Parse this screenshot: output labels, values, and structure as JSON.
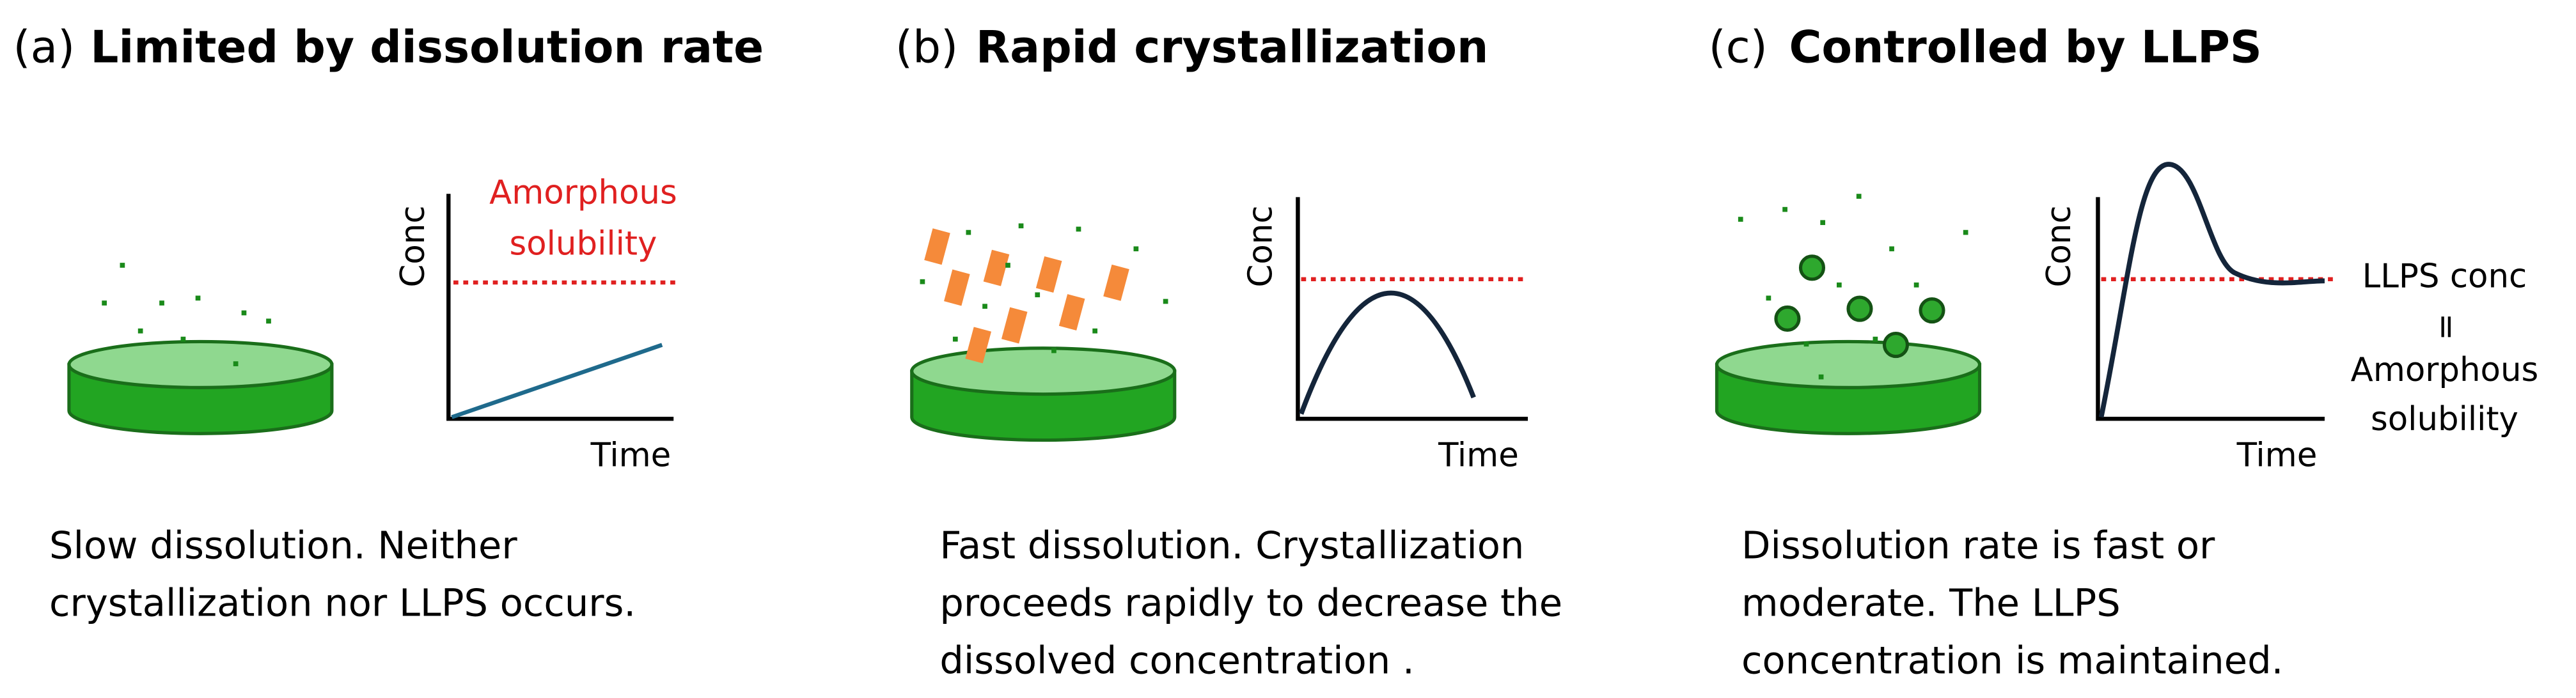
{
  "panels": [
    {
      "label": "(a)",
      "title": "Limited by dissolution rate",
      "y_axis": "Conc",
      "x_axis": "Time",
      "annotation": [
        "Amorphous",
        "solubility"
      ],
      "description": [
        "Slow dissolution. Neither",
        "crystallization nor LLPS occurs."
      ]
    },
    {
      "label": "(b)",
      "title": "Rapid crystallization",
      "y_axis": "Conc",
      "x_axis": "Time",
      "description": [
        "Fast dissolution. Crystallization",
        "proceeds rapidly to decrease the",
        "dissolved concentration ."
      ]
    },
    {
      "label": "(c)",
      "title": "Controlled by LLPS",
      "y_axis": "Conc",
      "x_axis": "Time",
      "annotation": [
        "LLPS conc",
        "=",
        "Amorphous",
        "solubility"
      ],
      "description": [
        "Dissolution rate is fast or",
        "moderate. The LLPS",
        "concentration is maintained."
      ]
    }
  ]
}
